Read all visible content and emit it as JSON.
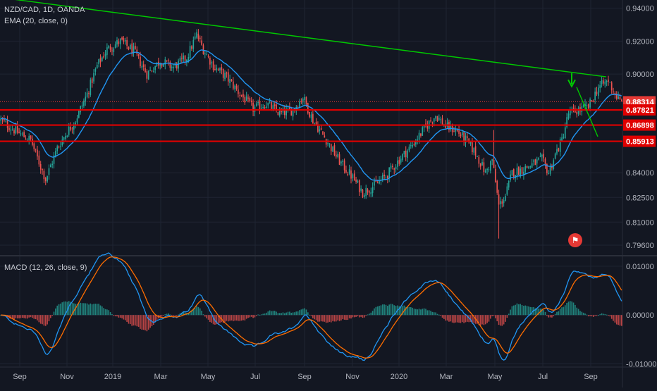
{
  "chart": {
    "symbol": "NZD/CAD, 1D, OANDA",
    "indicator_label": "EMA (20, close, 0)",
    "macd_label": "MACD (12, 26, close, 9)",
    "current_price_label": "0.88314"
  },
  "colors": {
    "background": "#131722",
    "grid": "#1f2433",
    "up_candle": "#26a69a",
    "down_candle": "#ef5350",
    "ema": "#2196f3",
    "trendline": "#00c800",
    "support": "#e00000",
    "price_tag": "#e53935",
    "macd_line": "#2196f3",
    "signal_line": "#ff6d00",
    "text": "#b2b5be"
  },
  "chart_data": [
    {
      "type": "candlestick",
      "title": "NZD/CAD, 1D, OANDA",
      "x": [
        "Sep",
        "Nov",
        "2019",
        "Mar",
        "May",
        "Jul",
        "Sep",
        "Nov",
        "2020",
        "Mar",
        "May",
        "Jul",
        "Sep"
      ],
      "ylim": [
        0.79,
        0.945
      ],
      "ytick_labels": [
        "0.94000",
        "0.92000",
        "0.90000",
        "0.88314",
        "0.87821",
        "0.86898",
        "0.85913",
        "0.84000",
        "0.82500",
        "0.81000",
        "0.79600"
      ],
      "y_ticks": [
        0.94,
        0.92,
        0.9,
        0.84,
        0.825,
        0.81,
        0.796
      ],
      "path_points": [
        {
          "t": 0,
          "p": 0.872
        },
        {
          "t": 8,
          "p": 0.866
        },
        {
          "t": 14,
          "p": 0.862
        },
        {
          "t": 18,
          "p": 0.86
        },
        {
          "t": 22,
          "p": 0.849
        },
        {
          "t": 27,
          "p": 0.836
        },
        {
          "t": 34,
          "p": 0.855
        },
        {
          "t": 40,
          "p": 0.865
        },
        {
          "t": 45,
          "p": 0.872
        },
        {
          "t": 52,
          "p": 0.888
        },
        {
          "t": 58,
          "p": 0.905
        },
        {
          "t": 64,
          "p": 0.915
        },
        {
          "t": 72,
          "p": 0.92
        },
        {
          "t": 80,
          "p": 0.914
        },
        {
          "t": 88,
          "p": 0.9
        },
        {
          "t": 96,
          "p": 0.908
        },
        {
          "t": 104,
          "p": 0.904
        },
        {
          "t": 112,
          "p": 0.91
        },
        {
          "t": 118,
          "p": 0.924
        },
        {
          "t": 122,
          "p": 0.915
        },
        {
          "t": 128,
          "p": 0.905
        },
        {
          "t": 136,
          "p": 0.898
        },
        {
          "t": 144,
          "p": 0.888
        },
        {
          "t": 152,
          "p": 0.879
        },
        {
          "t": 160,
          "p": 0.882
        },
        {
          "t": 168,
          "p": 0.876
        },
        {
          "t": 176,
          "p": 0.878
        },
        {
          "t": 182,
          "p": 0.886
        },
        {
          "t": 188,
          "p": 0.872
        },
        {
          "t": 196,
          "p": 0.86
        },
        {
          "t": 204,
          "p": 0.847
        },
        {
          "t": 212,
          "p": 0.837
        },
        {
          "t": 218,
          "p": 0.828
        },
        {
          "t": 226,
          "p": 0.833
        },
        {
          "t": 232,
          "p": 0.838
        },
        {
          "t": 240,
          "p": 0.848
        },
        {
          "t": 248,
          "p": 0.857
        },
        {
          "t": 256,
          "p": 0.868
        },
        {
          "t": 262,
          "p": 0.875
        },
        {
          "t": 268,
          "p": 0.868
        },
        {
          "t": 274,
          "p": 0.866
        },
        {
          "t": 280,
          "p": 0.86
        },
        {
          "t": 286,
          "p": 0.852
        },
        {
          "t": 292,
          "p": 0.84
        },
        {
          "t": 296,
          "p": 0.848
        },
        {
          "t": 300,
          "p": 0.82
        },
        {
          "t": 304,
          "p": 0.826
        },
        {
          "t": 308,
          "p": 0.84
        },
        {
          "t": 314,
          "p": 0.842
        },
        {
          "t": 320,
          "p": 0.845
        },
        {
          "t": 326,
          "p": 0.848
        },
        {
          "t": 330,
          "p": 0.84
        },
        {
          "t": 334,
          "p": 0.851
        },
        {
          "t": 338,
          "p": 0.86
        },
        {
          "t": 342,
          "p": 0.876
        },
        {
          "t": 348,
          "p": 0.878
        },
        {
          "t": 354,
          "p": 0.88
        },
        {
          "t": 360,
          "p": 0.892
        },
        {
          "t": 366,
          "p": 0.896
        },
        {
          "t": 370,
          "p": 0.888
        },
        {
          "t": 373,
          "p": 0.883
        }
      ],
      "ema_period": 20,
      "trendline": [
        {
          "date": "Aug 2018",
          "p": 0.94
        },
        {
          "date": "Sep 2020",
          "p": 0.9
        }
      ],
      "projection_line": [
        {
          "date": "Aug 2020",
          "p": 0.883
        },
        {
          "date": "Sep 2020",
          "p": 0.862
        }
      ],
      "horizontal_levels": [
        0.87821,
        0.86898,
        0.85913
      ],
      "last_price": 0.88314
    },
    {
      "type": "line",
      "title": "MACD (12, 26, close, 9)",
      "series": [],
      "ylim": [
        -0.0105,
        0.012
      ],
      "y_ticks": [
        0.01,
        0.0,
        -0.01
      ],
      "ytick_labels": [
        "0.01000",
        "0.00000",
        "-0.01000"
      ]
    }
  ]
}
